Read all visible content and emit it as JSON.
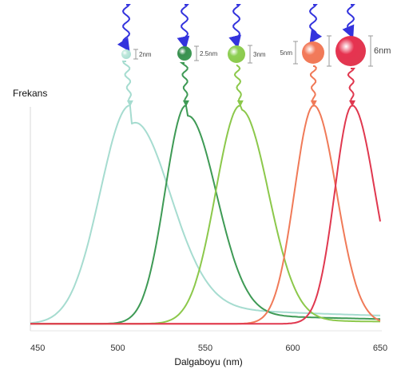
{
  "chart_data": {
    "type": "line",
    "title": "",
    "xlabel": "Dalgaboyu (nm)",
    "ylabel": "Frekans",
    "xlim": [
      450,
      650
    ],
    "xticks": [
      450,
      500,
      550,
      600,
      650
    ],
    "grid": false,
    "legend": "none",
    "series": [
      {
        "particle_label": "2nm",
        "color": "#a6dcd0",
        "dot": "#bfe8dc",
        "peak_x": 507,
        "peak_y": 1.0
      },
      {
        "particle_label": "2.5nm",
        "color": "#3e9a55",
        "dot": "#3a9050",
        "peak_x": 539,
        "peak_y": 1.0
      },
      {
        "particle_label": "3nm",
        "color": "#8cc84b",
        "dot": "#8ecf55",
        "peak_x": 570,
        "peak_y": 1.0
      },
      {
        "particle_label": "5nm",
        "color": "#f07a58",
        "dot": "#f27a5a",
        "peak_x": 612,
        "peak_y": 1.0
      },
      {
        "particle_label": "6nm",
        "color": "#e0384f",
        "dot": "#e63350",
        "peak_x": 634,
        "peak_y": 1.0
      }
    ]
  }
}
